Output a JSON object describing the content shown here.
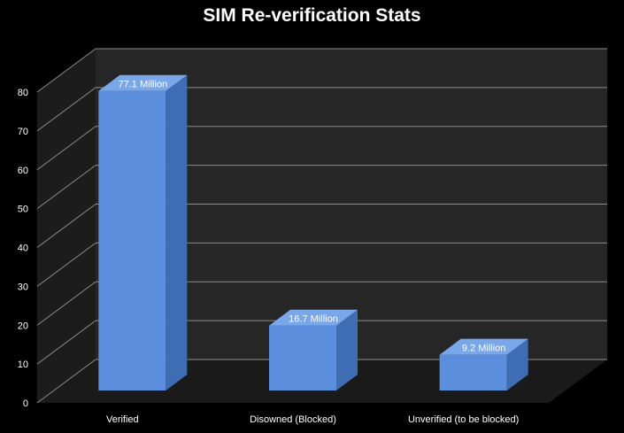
{
  "chart_data": {
    "type": "bar",
    "title": "SIM Re-verification Stats",
    "categories": [
      "Verified",
      "Disowned (Blocked)",
      "Unverified (to be blocked)"
    ],
    "values": [
      77.1,
      16.7,
      9.2
    ],
    "data_labels": [
      "77.1 Million",
      "16.7 Million",
      "9.2 Million"
    ],
    "ylim": [
      0,
      80
    ],
    "yticks": [
      0,
      10,
      20,
      30,
      40,
      50,
      60,
      70,
      80
    ],
    "grid": true,
    "legend": "none",
    "style": "3d-column",
    "colors": {
      "background": "#000000",
      "wall": "#262626",
      "floor": "#1a1a1a",
      "bar_front": "#5b8fde",
      "bar_side": "#3f6db3",
      "bar_top": "#7aa6ea",
      "grid": "#8c8c8c",
      "text": "#ffffff"
    }
  }
}
